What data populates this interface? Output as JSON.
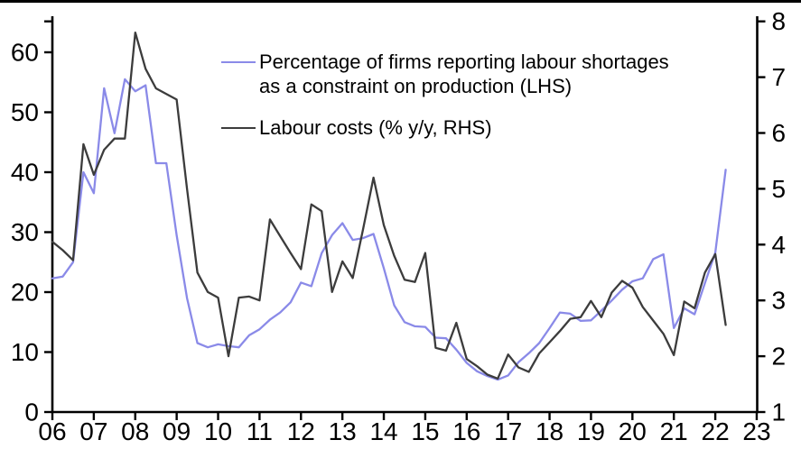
{
  "chart_data": {
    "type": "line",
    "title": "",
    "x_start_year": 2006,
    "x_step_years": 0.25,
    "x_tick_labels": [
      "06",
      "07",
      "08",
      "09",
      "10",
      "11",
      "12",
      "13",
      "14",
      "15",
      "16",
      "17",
      "18",
      "19",
      "20",
      "21",
      "22",
      "23"
    ],
    "left_axis": {
      "ticks": [
        0,
        10,
        20,
        30,
        40,
        50,
        60
      ],
      "min": 0,
      "max": 65
    },
    "right_axis": {
      "ticks": [
        1,
        2,
        3,
        4,
        5,
        6,
        7,
        8
      ],
      "min": 1,
      "max": 8
    },
    "grid": false,
    "legend_position": "top-center-inside",
    "series": [
      {
        "name": "Percentage of firms reporting labour shortages as a constraint on production (LHS)",
        "axis": "left",
        "color": "#8a8ae8",
        "values": [
          22.3,
          22.6,
          25,
          40,
          36.5,
          54,
          46.5,
          55.5,
          53.5,
          54.5,
          41.5,
          41.5,
          29.5,
          19,
          11.5,
          10.8,
          11.3,
          11,
          10.8,
          12.8,
          13.8,
          15.4,
          16.6,
          18.3,
          21.6,
          21,
          26.5,
          29.5,
          31.5,
          28.7,
          29,
          29.7,
          24,
          17.8,
          15,
          14.3,
          14.2,
          12.4,
          12.3,
          10.4,
          8.2,
          6.8,
          6,
          5.4,
          6.1,
          8.3,
          9.8,
          11.5,
          14,
          16.6,
          16.4,
          15.2,
          15.3,
          16.9,
          18.6,
          20.4,
          21.8,
          22.3,
          25.5,
          26.3,
          14,
          17.3,
          16.3,
          21.5,
          26.6,
          40.4
        ]
      },
      {
        "name": "Labour costs (% y/y, RHS)",
        "axis": "right",
        "color": "#3c3c3c",
        "values": [
          4.05,
          3.9,
          3.72,
          5.8,
          5.25,
          5.7,
          5.9,
          5.9,
          7.8,
          7.15,
          6.8,
          6.7,
          6.6,
          5,
          3.5,
          3.15,
          3.05,
          2,
          3.05,
          3.07,
          3,
          4.45,
          4.15,
          3.85,
          3.56,
          4.72,
          4.6,
          3.15,
          3.7,
          3.4,
          4.28,
          5.2,
          4.35,
          3.8,
          3.37,
          3.33,
          3.85,
          2.15,
          2.1,
          2.6,
          1.95,
          1.82,
          1.67,
          1.6,
          2.03,
          1.8,
          1.72,
          2.05,
          2.25,
          2.45,
          2.67,
          2.7,
          2.99,
          2.7,
          3.14,
          3.35,
          3.23,
          2.88,
          2.64,
          2.4,
          2.02,
          2.98,
          2.86,
          3.5,
          3.83,
          2.56
        ]
      }
    ]
  },
  "legend": {
    "entries": [
      {
        "label_line1": "Percentage of firms reporting labour shortages",
        "label_line2": "as a constraint on production (LHS)",
        "color": "#8a8ae8"
      },
      {
        "label_line1": "Labour costs (% y/y, RHS)",
        "label_line2": "",
        "color": "#3c3c3c"
      }
    ]
  },
  "colors": {
    "axis": "#000000",
    "background": "#ffffff",
    "tick_label": "#000000",
    "top_border": "#000000"
  }
}
